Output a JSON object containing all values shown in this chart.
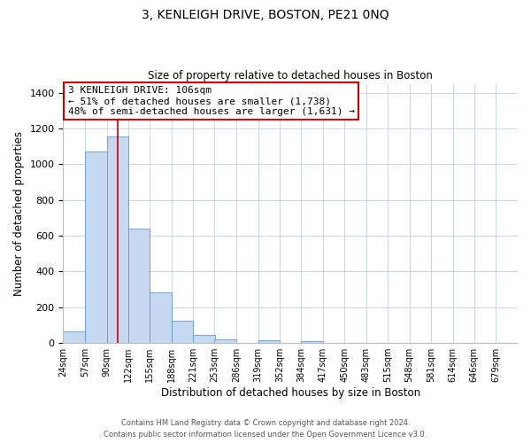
{
  "title": "3, KENLEIGH DRIVE, BOSTON, PE21 0NQ",
  "subtitle": "Size of property relative to detached houses in Boston",
  "xlabel": "Distribution of detached houses by size in Boston",
  "ylabel": "Number of detached properties",
  "bar_color": "#c6d9f0",
  "bar_edge_color": "#5b9bd5",
  "background_color": "#ffffff",
  "grid_color": "#c8d4e8",
  "annotation_box_color": "#cc0000",
  "annotation_line_color": "#cc0000",
  "property_line_x": 106,
  "annotation_text_line1": "3 KENLEIGH DRIVE: 106sqm",
  "annotation_text_line2": "← 51% of detached houses are smaller (1,738)",
  "annotation_text_line3": "48% of semi-detached houses are larger (1,631) →",
  "bins": [
    24,
    57,
    90,
    122,
    155,
    188,
    221,
    253,
    286,
    319,
    352,
    384,
    417,
    450,
    483,
    515,
    548,
    581,
    614,
    646,
    679
  ],
  "bin_heights": [
    65,
    1070,
    1155,
    640,
    285,
    125,
    47,
    22,
    0,
    15,
    0,
    10,
    0,
    0,
    0,
    0,
    0,
    0,
    0,
    0
  ],
  "ylim": [
    0,
    1450
  ],
  "yticks": [
    0,
    200,
    400,
    600,
    800,
    1000,
    1200,
    1400
  ],
  "footer_line1": "Contains HM Land Registry data © Crown copyright and database right 2024.",
  "footer_line2": "Contains public sector information licensed under the Open Government Licence v3.0."
}
